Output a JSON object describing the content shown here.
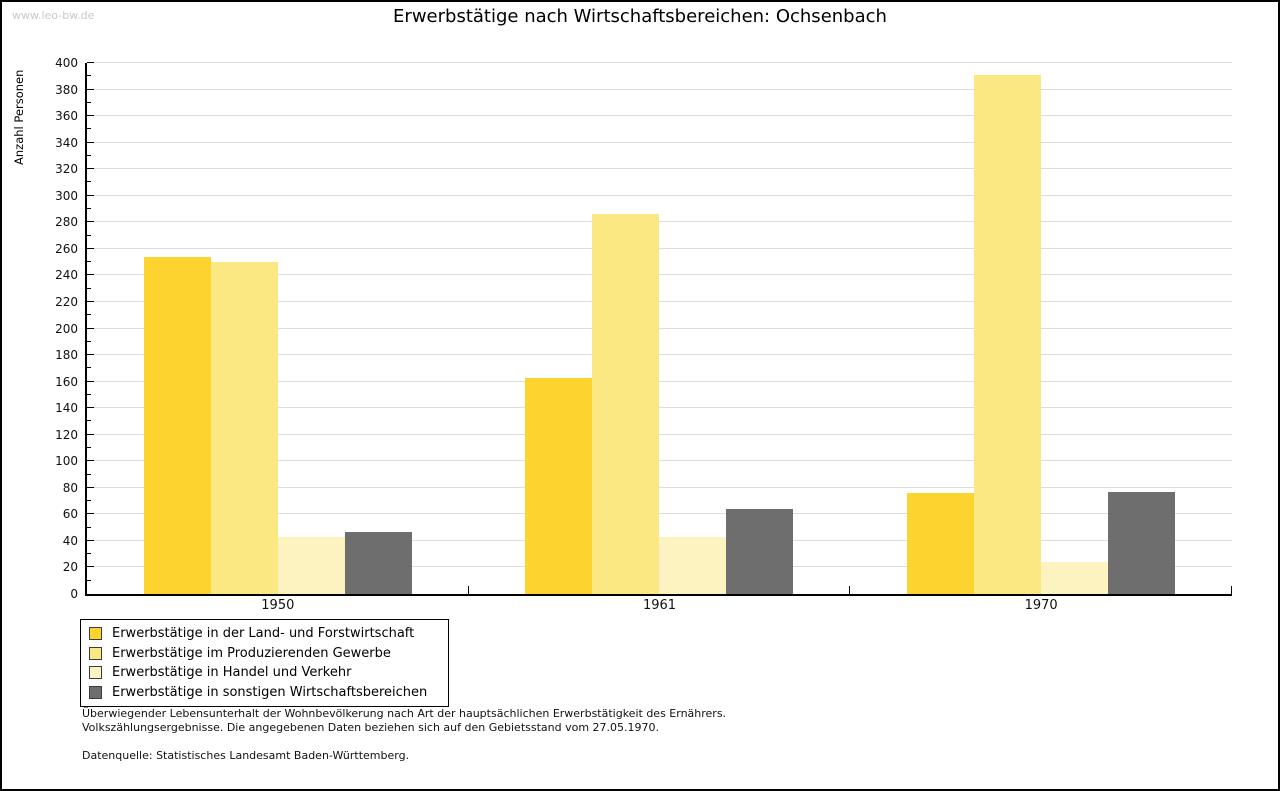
{
  "watermark": "www.leo-bw.de",
  "chart_data": {
    "type": "bar",
    "title": "Erwerbstätige nach Wirtschaftsbereichen: Ochsenbach",
    "ylabel": "Anzahl Personen",
    "xlabel": "",
    "ylim": [
      0,
      400
    ],
    "ytick_step": 20,
    "ytick_minor_step": 10,
    "grid": true,
    "legend_position": "bottom-left",
    "categories": [
      "1950",
      "1961",
      "1970"
    ],
    "series": [
      {
        "name": "Erwerbstätige in der Land- und Forstwirtschaft",
        "color": "#fcd32f",
        "values": [
          254,
          163,
          76
        ]
      },
      {
        "name": "Erwerbstätige im Produzierenden Gewerbe",
        "color": "#fce882",
        "values": [
          250,
          286,
          391
        ]
      },
      {
        "name": "Erwerbstätige in Handel und Verkehr",
        "color": "#fcf3c0",
        "values": [
          43,
          43,
          24
        ]
      },
      {
        "name": "Erwerbstätige in sonstigen Wirtschaftsbereichen",
        "color": "#6e6e6e",
        "values": [
          47,
          64,
          77
        ]
      }
    ],
    "colors": {
      "gridline": "#dcdcdc",
      "axis": "#000000",
      "watermark": "#c9c9c9"
    }
  },
  "footnotes": {
    "line1": "Überwiegender Lebensunterhalt der Wohnbevölkerung nach Art der hauptsächlichen Erwerbstätigkeit des Ernährers.",
    "line2": "Volkszählungsergebnisse. Die angegebenen Daten beziehen sich auf den Gebietsstand vom 27.05.1970.",
    "source": "Datenquelle: Statistisches Landesamt Baden-Württemberg."
  }
}
